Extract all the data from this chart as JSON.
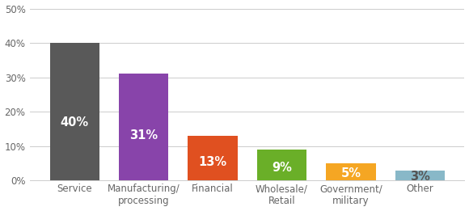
{
  "categories": [
    "Service",
    "Manufacturing/\nprocessing",
    "Financial",
    "Wholesale/\nRetail",
    "Government/\nmilitary",
    "Other"
  ],
  "values": [
    40,
    31,
    13,
    9,
    5,
    3
  ],
  "bar_colors": [
    "#595959",
    "#8844AA",
    "#E05020",
    "#6AAF28",
    "#F5A623",
    "#88B8C8"
  ],
  "labels": [
    "40%",
    "31%",
    "13%",
    "9%",
    "5%",
    "3%"
  ],
  "label_colors": [
    "#ffffff",
    "#ffffff",
    "#ffffff",
    "#ffffff",
    "#ffffff",
    "#555555"
  ],
  "ylim": [
    0,
    50
  ],
  "yticks": [
    0,
    10,
    20,
    30,
    40,
    50
  ],
  "ytick_labels": [
    "0%",
    "10%",
    "20%",
    "30%",
    "40%",
    "50%"
  ],
  "label_fontsize": 10.5,
  "tick_fontsize": 8.5,
  "background_color": "#ffffff",
  "grid_color": "#cccccc",
  "bar_width": 0.72
}
